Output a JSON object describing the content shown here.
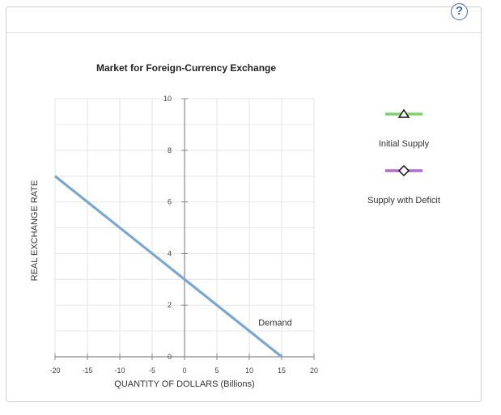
{
  "help_icon": "question-mark-icon",
  "help_label": "?",
  "colors": {
    "demand": "#7aa7cf",
    "initial_supply": "#7ed36f",
    "supply_with_deficit": "#b36bd6",
    "axis": "#888888",
    "grid": "#e6e6e6"
  },
  "chart_data": {
    "type": "line",
    "title": "Market for Foreign-Currency Exchange",
    "xlabel": "QUANTITY OF DOLLARS (Billions)",
    "ylabel": "REAL EXCHANGE RATE",
    "xlim": [
      -20,
      20
    ],
    "ylim": [
      0,
      10
    ],
    "xticks": [
      -20,
      -15,
      -10,
      -5,
      0,
      5,
      10,
      15,
      20
    ],
    "yticks": [
      0,
      2,
      4,
      6,
      8,
      10
    ],
    "grid": true,
    "legend_placement": "right",
    "series": [
      {
        "name": "Demand",
        "x": [
          -20,
          15
        ],
        "y": [
          7,
          0
        ]
      }
    ],
    "annotations": [
      {
        "text": "Demand",
        "x": 14,
        "y": 1.2
      }
    ],
    "legend": [
      {
        "name": "Initial Supply",
        "marker": "triangle",
        "color": "#7ed36f"
      },
      {
        "name": "Supply with Deficit",
        "marker": "diamond",
        "color": "#b36bd6"
      }
    ]
  }
}
